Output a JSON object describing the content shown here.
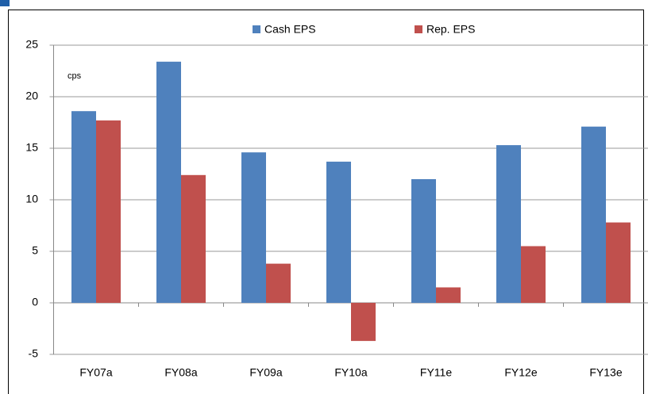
{
  "chart_data": {
    "type": "bar",
    "annotation": "cps",
    "categories": [
      "FY07a",
      "FY08a",
      "FY09a",
      "FY10a",
      "FY11e",
      "FY12e",
      "FY13e"
    ],
    "series": [
      {
        "name": "Cash EPS",
        "color": "#4f81bd",
        "values": [
          18.6,
          23.4,
          14.6,
          13.7,
          12.0,
          15.3,
          17.1
        ]
      },
      {
        "name": "Rep. EPS",
        "color": "#c0504d",
        "values": [
          17.7,
          12.4,
          3.8,
          -3.7,
          1.5,
          5.5,
          7.8
        ]
      }
    ],
    "ylim": [
      -5,
      25
    ],
    "yticks": [
      -5,
      0,
      5,
      10,
      15,
      20,
      25
    ],
    "grid": true,
    "legend": "top"
  }
}
